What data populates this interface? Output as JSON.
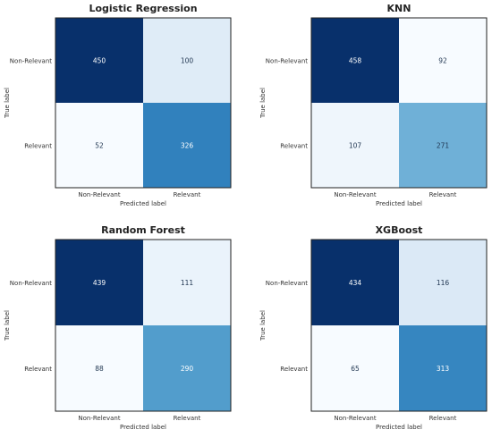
{
  "chart_data": [
    {
      "type": "heatmap",
      "title": "Logistic Regression",
      "xlabel": "Predicted label",
      "ylabel": "True label",
      "x_categories": [
        "Non-Relevant",
        "Relevant"
      ],
      "y_categories": [
        "Non-Relevant",
        "Relevant"
      ],
      "values": [
        [
          450,
          100
        ],
        [
          52,
          326
        ]
      ],
      "colormap": "Blues",
      "grid": false
    },
    {
      "type": "heatmap",
      "title": "KNN",
      "xlabel": "Predicted label",
      "ylabel": "True label",
      "x_categories": [
        "Non-Relevant",
        "Relevant"
      ],
      "y_categories": [
        "Non-Relevant",
        "Relevant"
      ],
      "values": [
        [
          458,
          92
        ],
        [
          107,
          271
        ]
      ],
      "colormap": "Blues",
      "grid": false
    },
    {
      "type": "heatmap",
      "title": "Random Forest",
      "xlabel": "Predicted label",
      "ylabel": "True label",
      "x_categories": [
        "Non-Relevant",
        "Relevant"
      ],
      "y_categories": [
        "Non-Relevant",
        "Relevant"
      ],
      "values": [
        [
          439,
          111
        ],
        [
          88,
          290
        ]
      ],
      "colormap": "Blues",
      "grid": false
    },
    {
      "type": "heatmap",
      "title": "XGBoost",
      "xlabel": "Predicted label",
      "ylabel": "True label",
      "x_categories": [
        "Non-Relevant",
        "Relevant"
      ],
      "y_categories": [
        "Non-Relevant",
        "Relevant"
      ],
      "values": [
        [
          434,
          116
        ],
        [
          65,
          313
        ]
      ],
      "colormap": "Blues",
      "grid": false
    }
  ]
}
